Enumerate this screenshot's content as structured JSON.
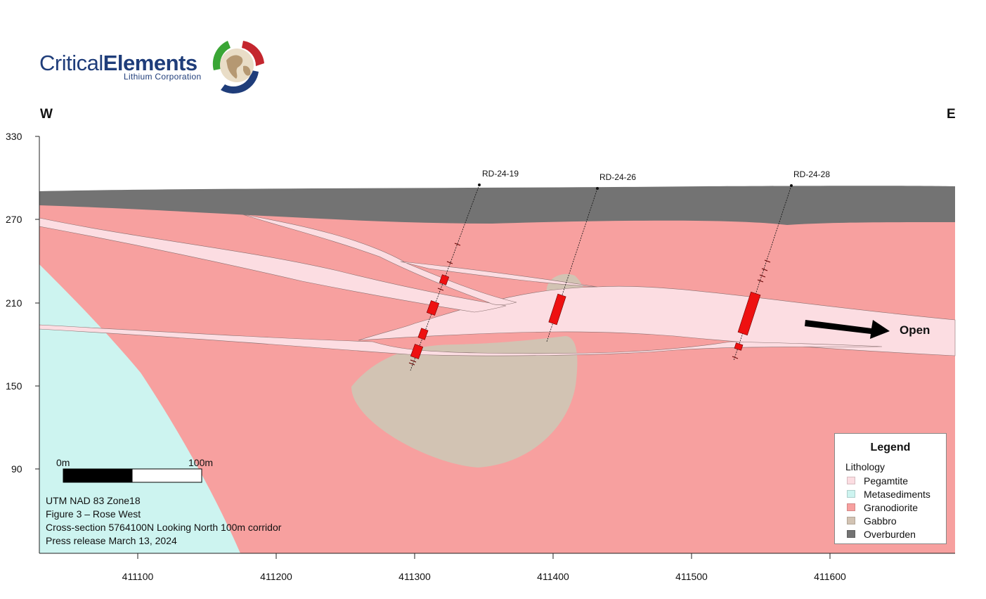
{
  "logo": {
    "name_part1": "Critical",
    "name_part2": "Elements",
    "subtitle": "Lithium Corporation"
  },
  "directions": {
    "west": "W",
    "east": "E"
  },
  "axes": {
    "y_ticks": [
      "330",
      "270",
      "210",
      "150",
      "90"
    ],
    "x_ticks": [
      "411100",
      "411200",
      "411300",
      "411400",
      "411500",
      "411600"
    ]
  },
  "drill_holes": [
    {
      "id": "RD-24-19"
    },
    {
      "id": "RD-24-26"
    },
    {
      "id": "RD-24-28"
    }
  ],
  "open_label": "Open",
  "scale_bar": {
    "start": "0m",
    "end": "100m"
  },
  "info": {
    "line1": "UTM NAD 83 Zone18",
    "line2": "Figure 3 – Rose West",
    "line3": "Cross-section 5764100N Looking North 100m corridor",
    "line4": "Press release March 13, 2024"
  },
  "legend": {
    "title": "Legend",
    "subtitle": "Lithology",
    "items": [
      {
        "label": "Pegamtite",
        "color": "#fcdde2"
      },
      {
        "label": "Metasediments",
        "color": "#cdf4f0"
      },
      {
        "label": "Granodiorite",
        "color": "#f7a09f"
      },
      {
        "label": "Gabbro",
        "color": "#d2c3b3"
      },
      {
        "label": "Overburden",
        "color": "#737373"
      }
    ]
  },
  "colors": {
    "pegmatite": "#fcdde2",
    "metasediments": "#cdf4f0",
    "granodiorite": "#f7a09f",
    "gabbro": "#d2c3b3",
    "overburden": "#737373",
    "intersection": "#ee1111"
  }
}
